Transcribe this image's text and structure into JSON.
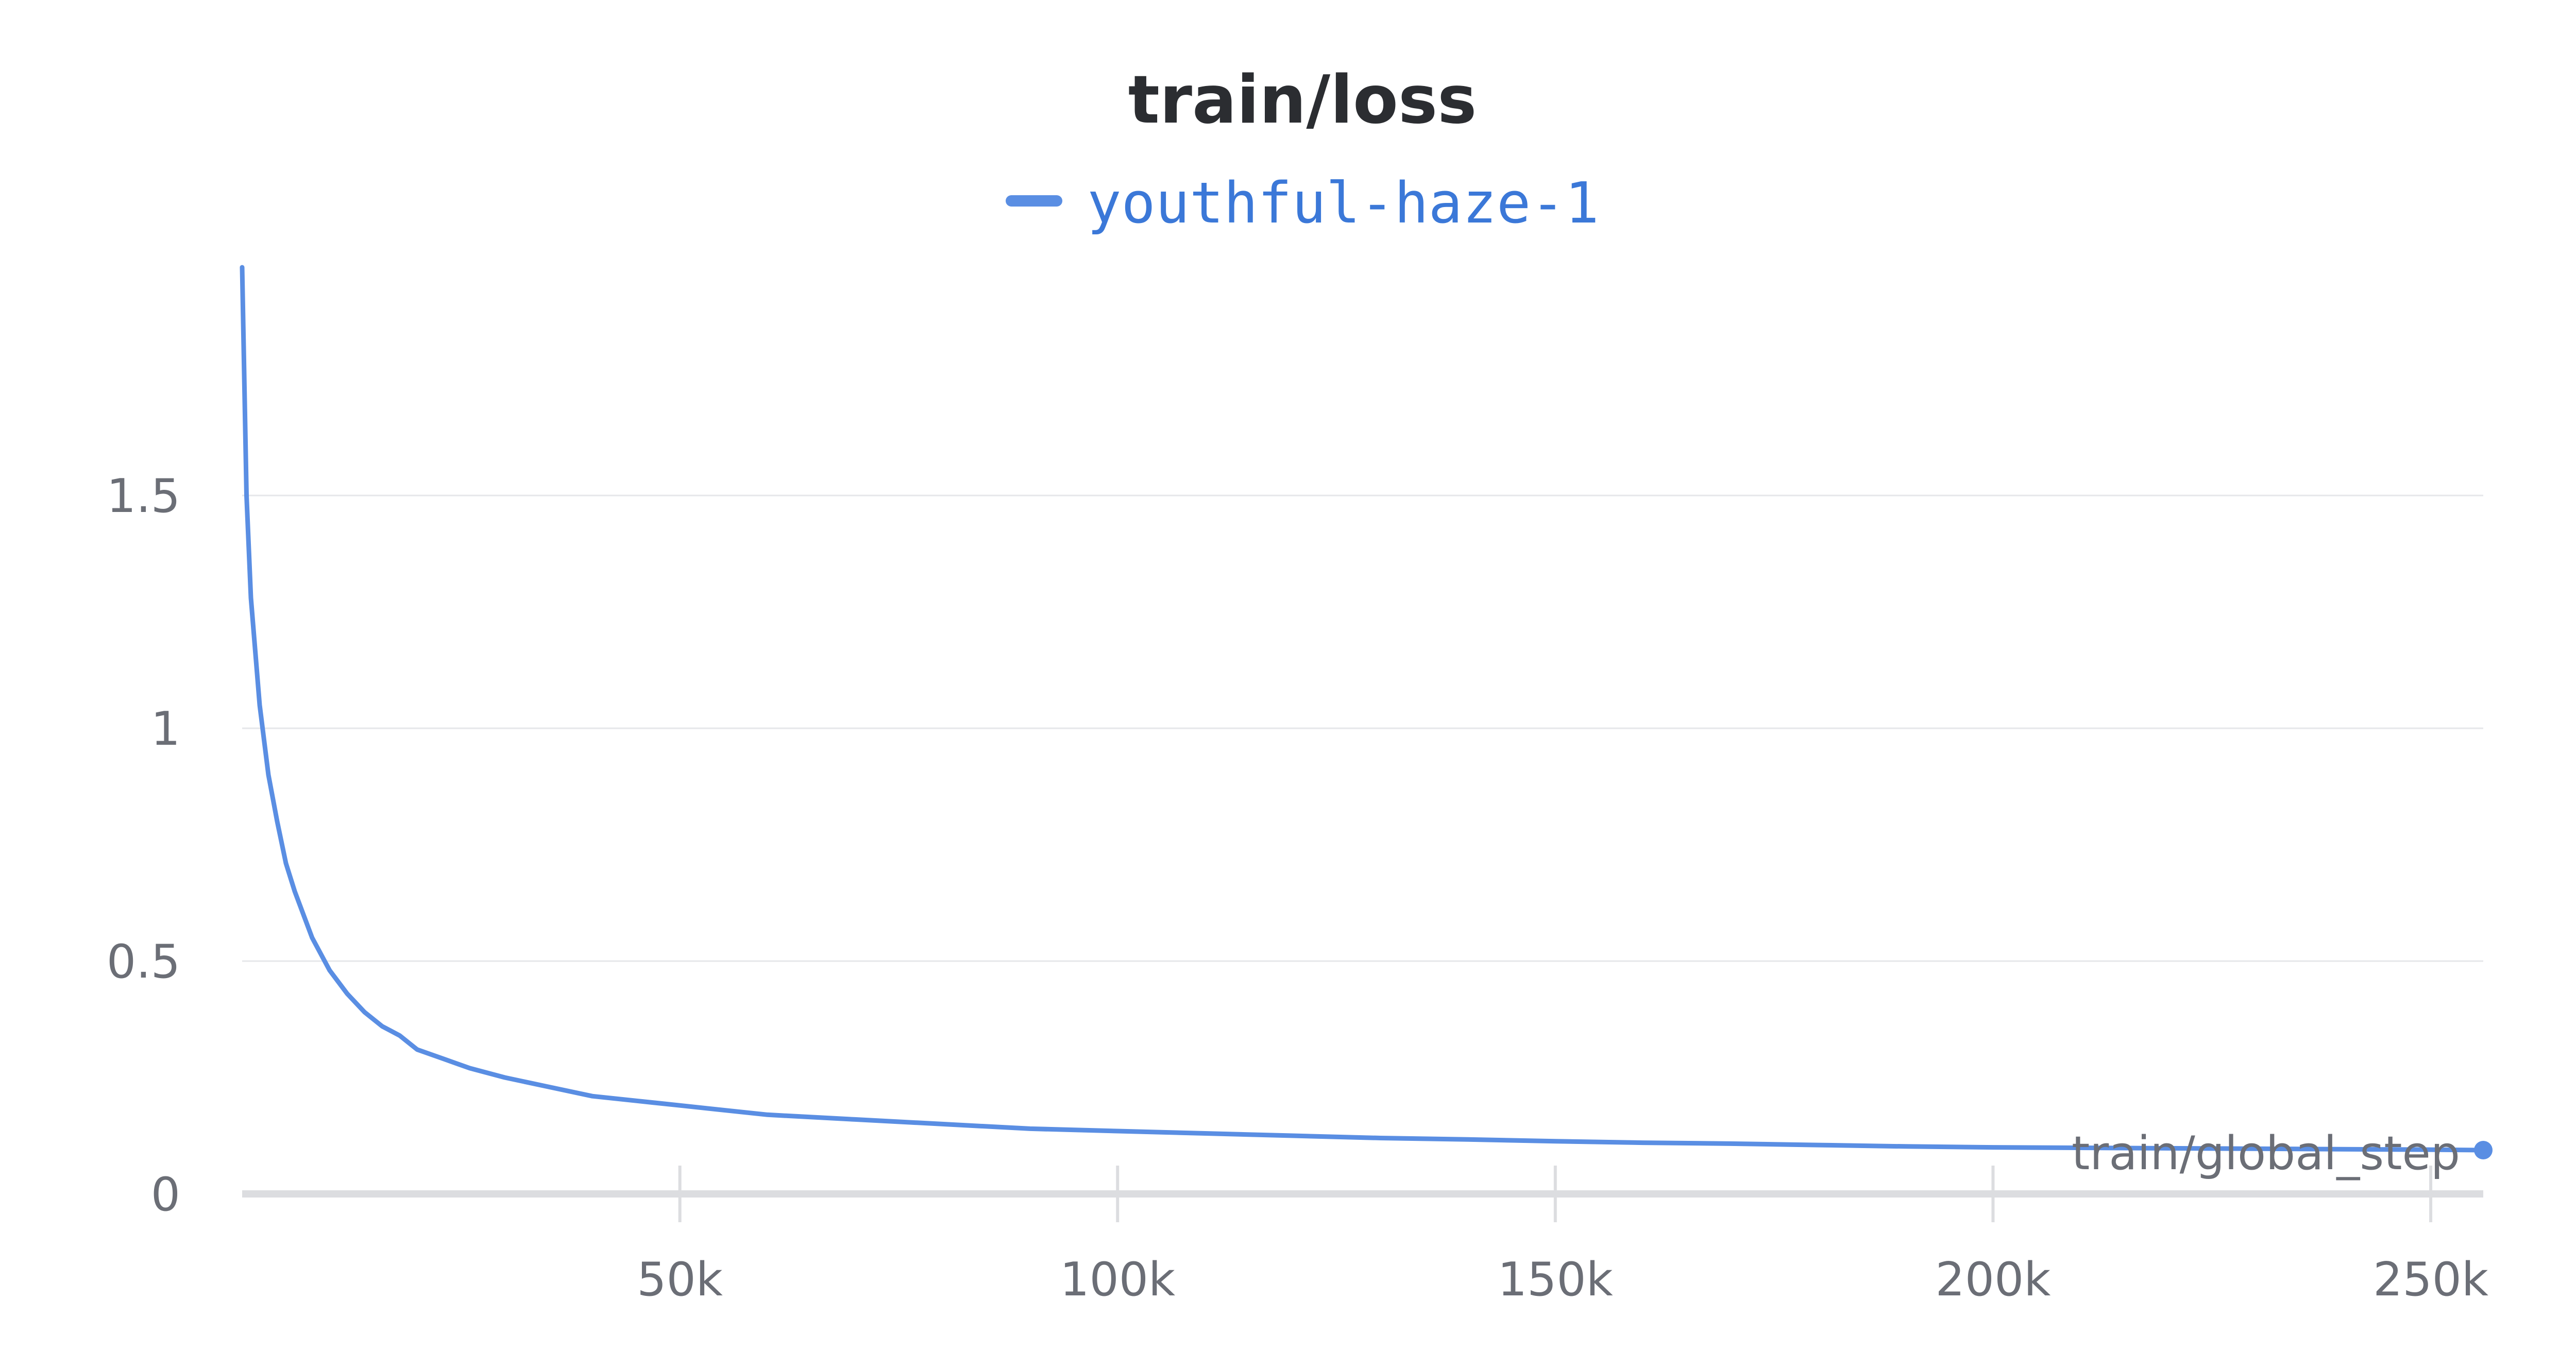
{
  "chart_data": {
    "type": "line",
    "title": "train/loss",
    "xlabel": "train/global_step",
    "ylabel": "",
    "xlim": [
      0,
      256000
    ],
    "ylim": [
      0,
      2.0
    ],
    "x_ticks": [
      {
        "value": 50000,
        "label": "50k"
      },
      {
        "value": 100000,
        "label": "100k"
      },
      {
        "value": 150000,
        "label": "150k"
      },
      {
        "value": 200000,
        "label": "200k"
      },
      {
        "value": 250000,
        "label": "250k"
      }
    ],
    "y_ticks": [
      {
        "value": 0,
        "label": "0"
      },
      {
        "value": 0.5,
        "label": "0.5"
      },
      {
        "value": 1,
        "label": "1"
      },
      {
        "value": 1.5,
        "label": "1.5"
      }
    ],
    "grid": true,
    "legend_position": "top-center",
    "series": [
      {
        "name": "youthful-haze-1",
        "color": "#5a8ee3",
        "x": [
          0,
          500,
          1000,
          2000,
          3000,
          4000,
          5000,
          6000,
          7000,
          8000,
          10000,
          12000,
          14000,
          16000,
          18000,
          20000,
          23000,
          26000,
          30000,
          35000,
          40000,
          45000,
          50000,
          55000,
          60000,
          70000,
          80000,
          90000,
          100000,
          110000,
          120000,
          130000,
          140000,
          150000,
          160000,
          170000,
          180000,
          190000,
          200000,
          210000,
          220000,
          230000,
          240000,
          250000,
          256000
        ],
        "y": [
          1.99,
          1.5,
          1.28,
          1.05,
          0.9,
          0.8,
          0.71,
          0.65,
          0.6,
          0.55,
          0.48,
          0.43,
          0.39,
          0.36,
          0.34,
          0.31,
          0.29,
          0.27,
          0.25,
          0.23,
          0.21,
          0.2,
          0.19,
          0.18,
          0.17,
          0.16,
          0.15,
          0.14,
          0.135,
          0.13,
          0.125,
          0.12,
          0.117,
          0.113,
          0.11,
          0.108,
          0.105,
          0.102,
          0.1,
          0.099,
          0.098,
          0.097,
          0.096,
          0.095,
          0.094
        ]
      }
    ]
  }
}
